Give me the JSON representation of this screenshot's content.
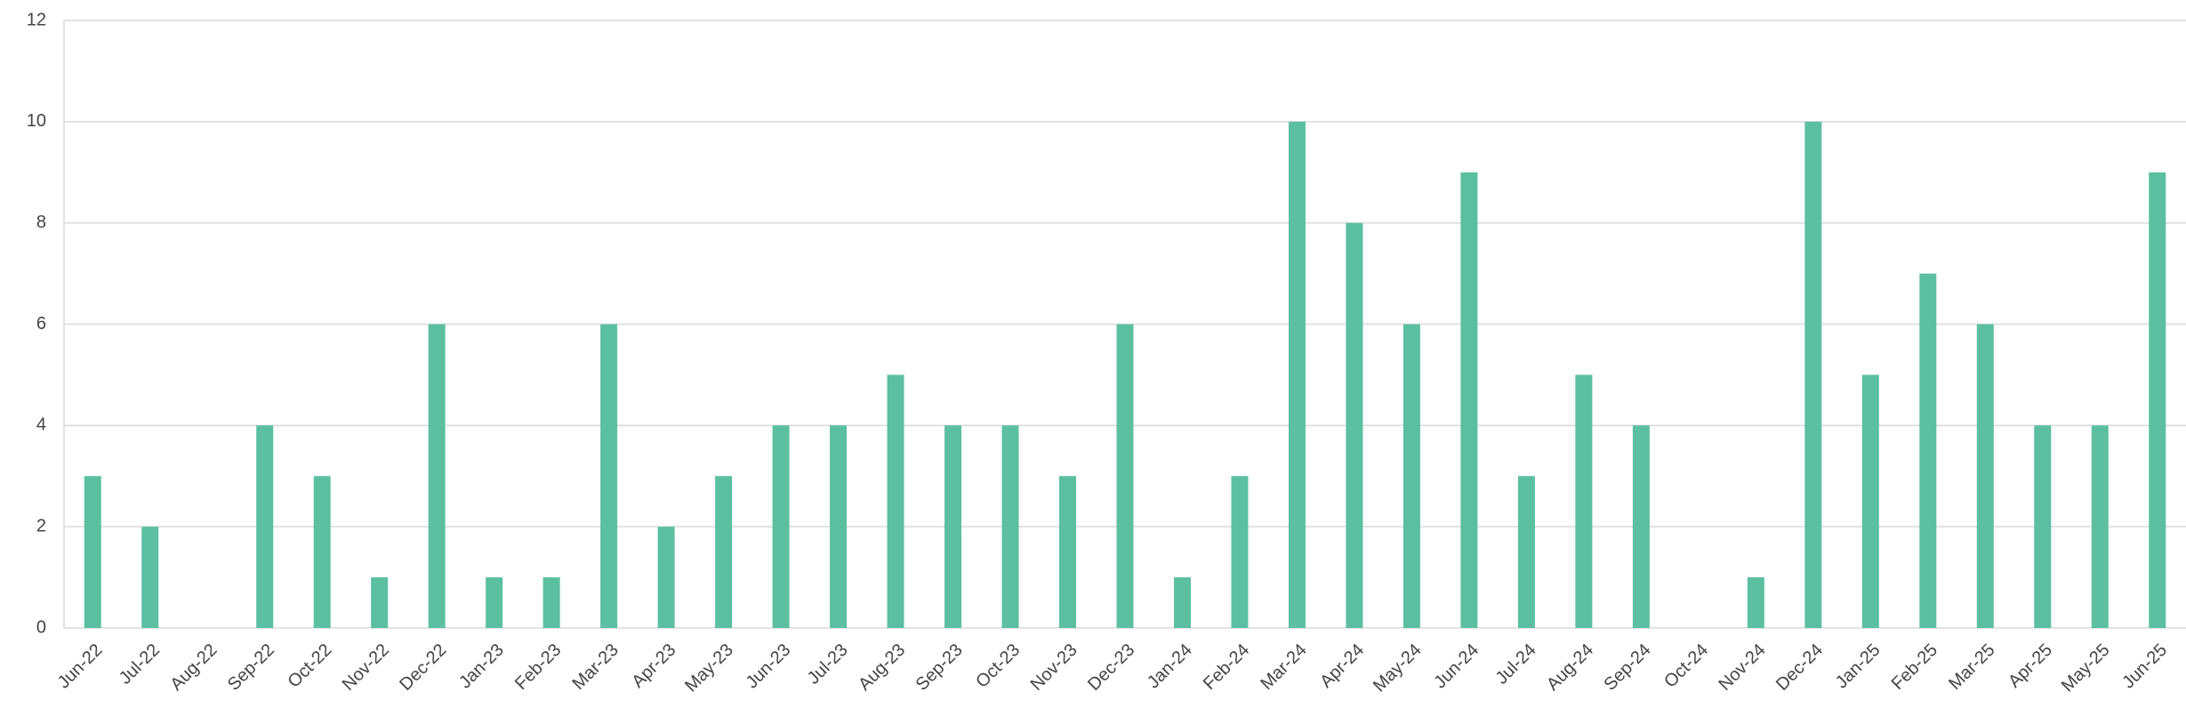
{
  "chart_data": {
    "type": "bar",
    "categories": [
      "Jun-22",
      "Jul-22",
      "Aug-22",
      "Sep-22",
      "Oct-22",
      "Nov-22",
      "Dec-22",
      "Jan-23",
      "Feb-23",
      "Mar-23",
      "Apr-23",
      "May-23",
      "Jun-23",
      "Jul-23",
      "Aug-23",
      "Sep-23",
      "Oct-23",
      "Nov-23",
      "Dec-23",
      "Jan-24",
      "Feb-24",
      "Mar-24",
      "Apr-24",
      "May-24",
      "Jun-24",
      "Jul-24",
      "Aug-24",
      "Sep-24",
      "Oct-24",
      "Nov-24",
      "Dec-24",
      "Jan-25",
      "Feb-25",
      "Mar-25",
      "Apr-25",
      "May-25",
      "Jun-25"
    ],
    "values": [
      3,
      2,
      0,
      4,
      3,
      1,
      6,
      1,
      1,
      6,
      2,
      3,
      4,
      4,
      5,
      4,
      4,
      3,
      6,
      1,
      3,
      10,
      8,
      6,
      9,
      3,
      5,
      4,
      0,
      1,
      10,
      5,
      7,
      6,
      4,
      4,
      9
    ],
    "color": "#5bbfa0",
    "ylim": [
      0,
      12
    ],
    "yticks": [
      0,
      2,
      4,
      6,
      8,
      10,
      12
    ],
    "grid": true
  }
}
